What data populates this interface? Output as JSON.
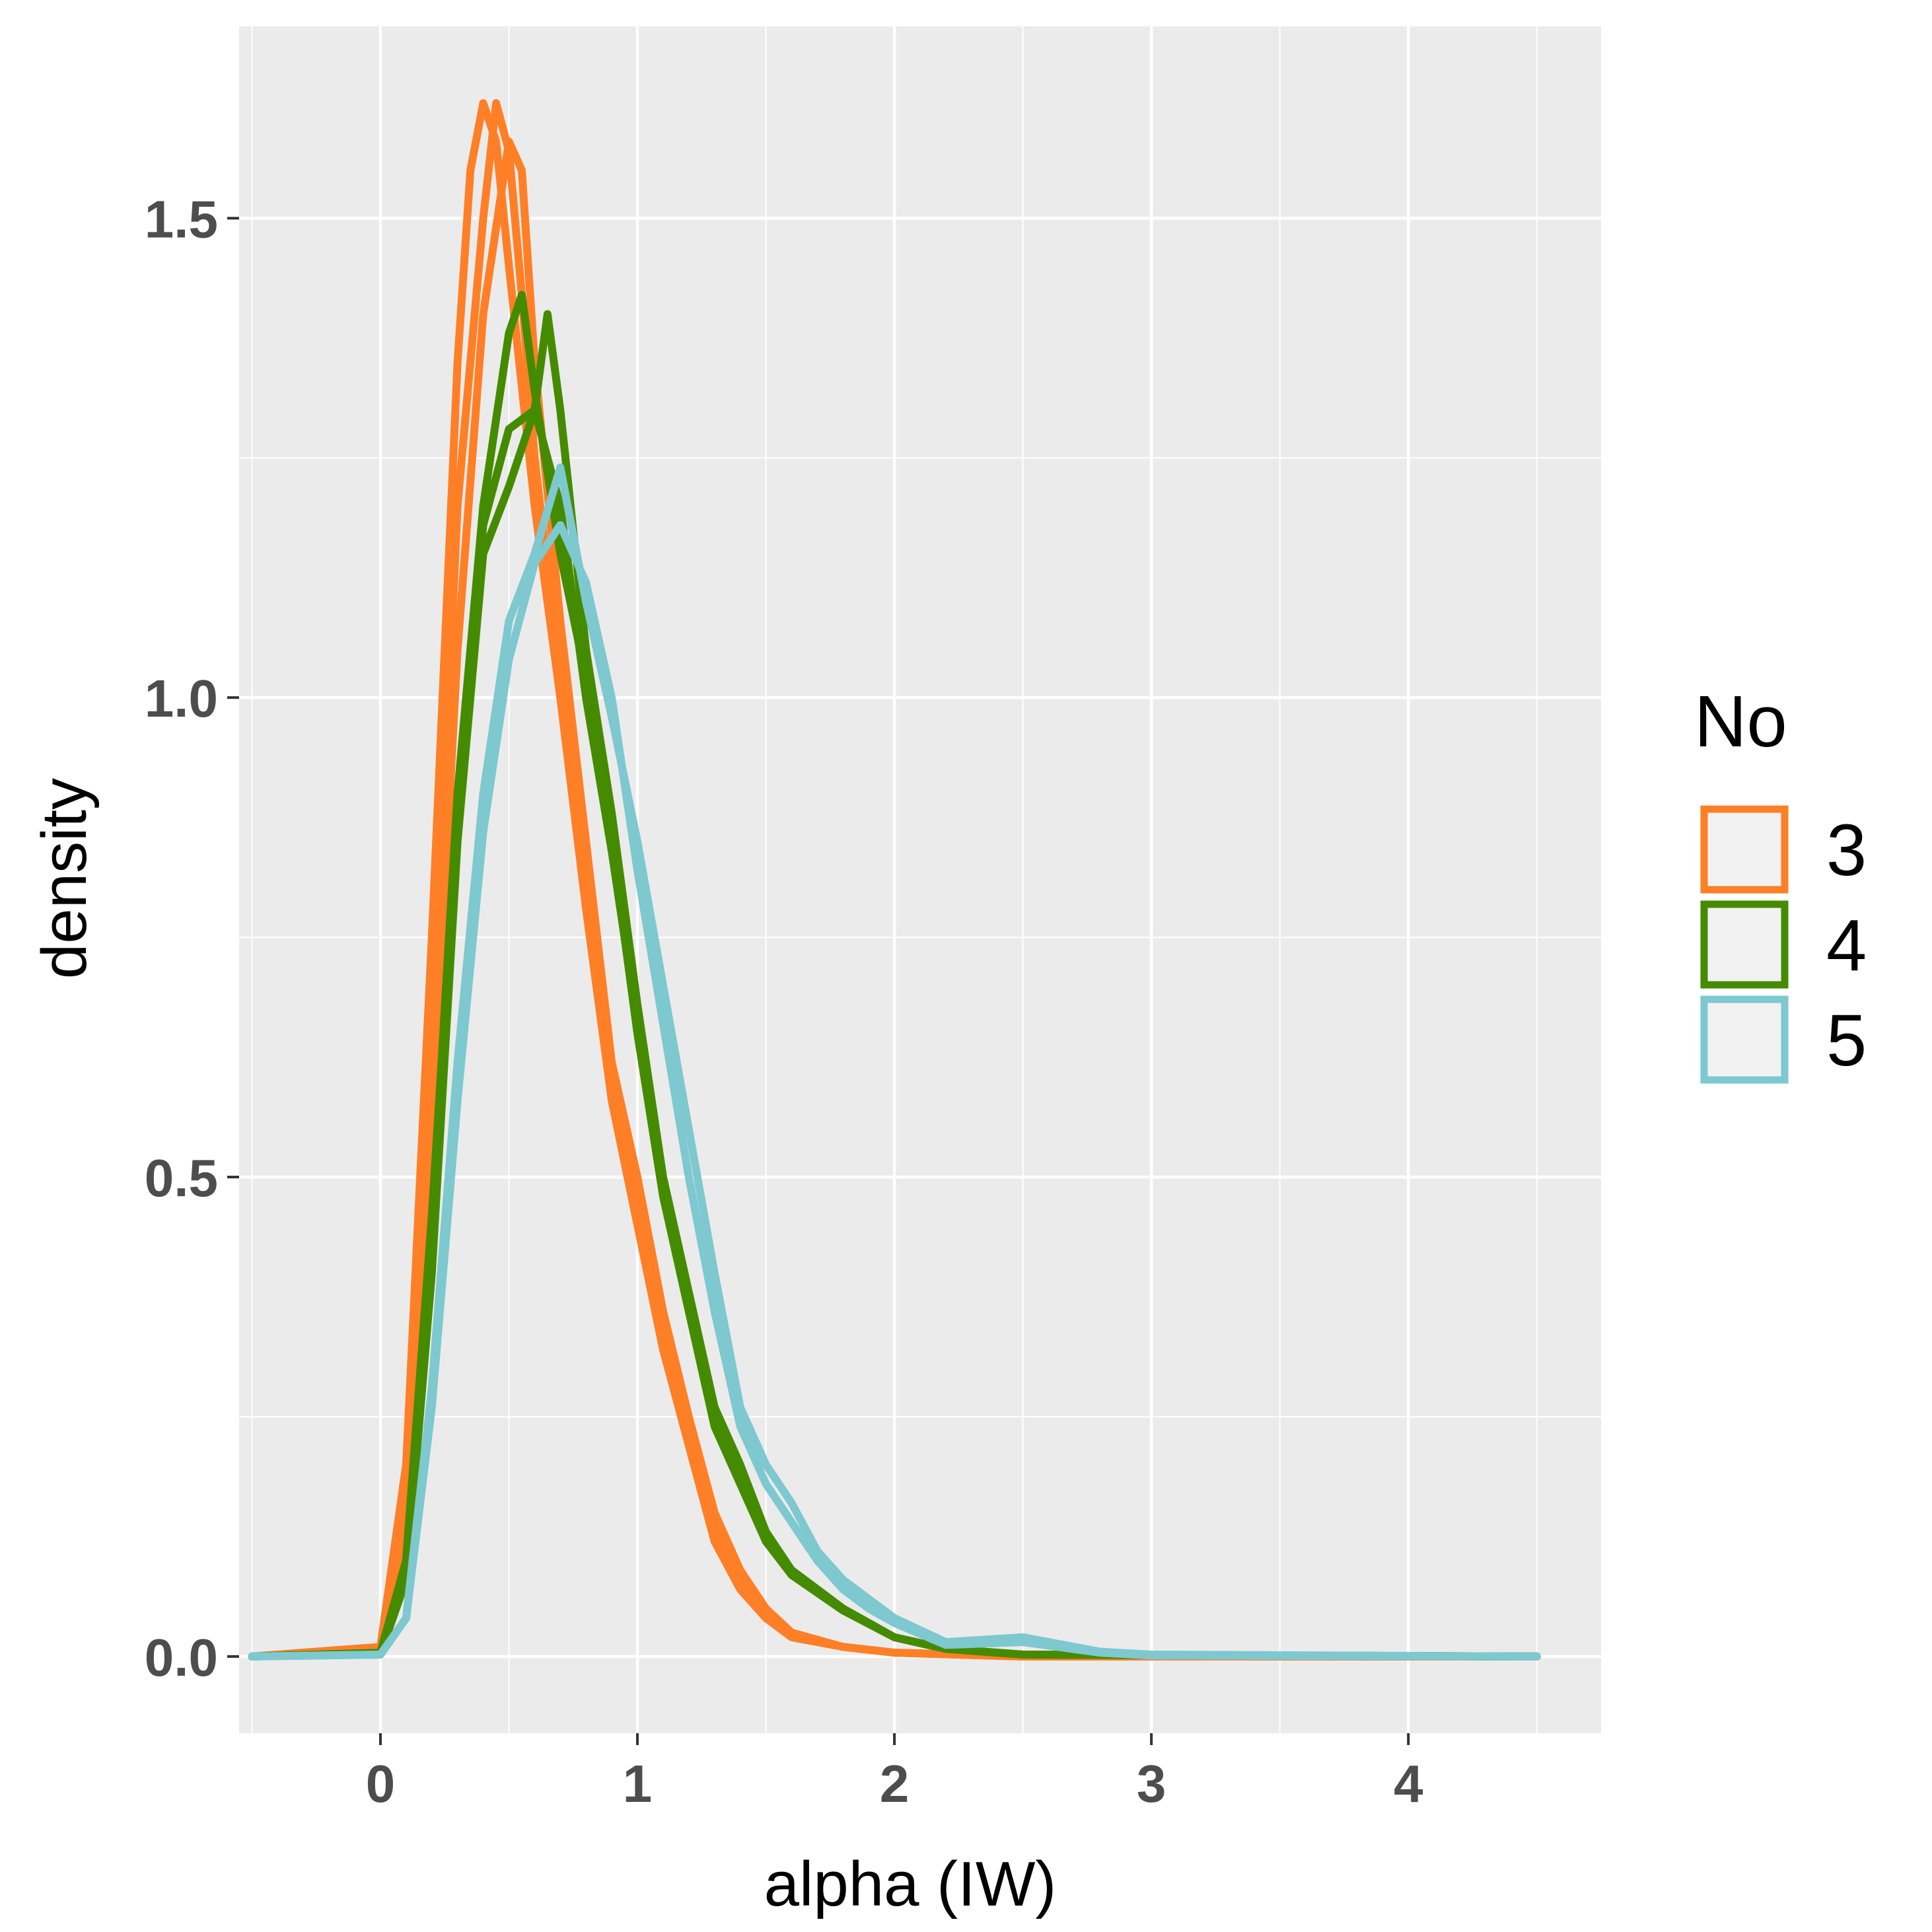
{
  "chart_data": {
    "type": "line",
    "title": "",
    "xlabel": "alpha (IW)",
    "ylabel": "density",
    "xlim": [
      -0.55,
      4.75
    ],
    "ylim": [
      -0.08,
      1.7
    ],
    "x_ticks": [
      0,
      1,
      2,
      3,
      4
    ],
    "x_tick_labels": [
      "0",
      "1",
      "2",
      "3",
      "4"
    ],
    "y_ticks": [
      0.0,
      0.5,
      1.0,
      1.5
    ],
    "y_tick_labels": [
      "0.0",
      "0.5",
      "1.0",
      "1.5"
    ],
    "grid": true,
    "panel_background": "#ebebeb",
    "legend": {
      "title": "No",
      "position": "right",
      "entries": [
        {
          "label": "3",
          "color": "#ff7f27"
        },
        {
          "label": "4",
          "color": "#458b00"
        },
        {
          "label": "5",
          "color": "#7ec8d0"
        }
      ]
    },
    "series": [
      {
        "name": "3",
        "color": "#ff7f27",
        "x": [
          -0.5,
          0.0,
          0.1,
          0.2,
          0.3,
          0.35,
          0.4,
          0.45,
          0.5,
          0.6,
          0.7,
          0.8,
          0.9,
          1.0,
          1.1,
          1.2,
          1.3,
          1.4,
          1.5,
          1.6,
          1.8,
          2.0,
          2.5,
          4.5
        ],
        "y": [
          0,
          0.01,
          0.2,
          0.75,
          1.35,
          1.55,
          1.62,
          1.58,
          1.45,
          1.2,
          1.0,
          0.78,
          0.58,
          0.45,
          0.32,
          0.22,
          0.12,
          0.07,
          0.04,
          0.02,
          0.01,
          0.004,
          0,
          0
        ]
      },
      {
        "name": "3",
        "color": "#ff7f27",
        "x": [
          -0.5,
          0.0,
          0.1,
          0.2,
          0.3,
          0.4,
          0.45,
          0.5,
          0.55,
          0.6,
          0.7,
          0.8,
          0.9,
          1.0,
          1.1,
          1.2,
          1.3,
          1.4,
          1.5,
          1.6,
          1.8,
          2.0,
          2.5,
          4.5
        ],
        "y": [
          0,
          0.005,
          0.15,
          0.62,
          1.2,
          1.5,
          1.62,
          1.57,
          1.42,
          1.25,
          1.02,
          0.82,
          0.6,
          0.48,
          0.34,
          0.24,
          0.14,
          0.08,
          0.045,
          0.022,
          0.01,
          0.004,
          0,
          0
        ]
      },
      {
        "name": "3",
        "color": "#ff7f27",
        "x": [
          -0.5,
          0.0,
          0.1,
          0.2,
          0.3,
          0.4,
          0.5,
          0.55,
          0.6,
          0.7,
          0.8,
          0.9,
          1.0,
          1.1,
          1.2,
          1.3,
          1.4,
          1.5,
          1.6,
          1.8,
          2.0,
          2.5,
          4.5
        ],
        "y": [
          0,
          0.005,
          0.12,
          0.55,
          1.05,
          1.4,
          1.58,
          1.55,
          1.35,
          1.08,
          0.85,
          0.62,
          0.5,
          0.36,
          0.25,
          0.15,
          0.09,
          0.05,
          0.025,
          0.01,
          0.004,
          0,
          0
        ]
      },
      {
        "name": "4",
        "color": "#458b00",
        "x": [
          -0.5,
          0.0,
          0.1,
          0.2,
          0.3,
          0.4,
          0.5,
          0.55,
          0.6,
          0.7,
          0.8,
          0.9,
          1.0,
          1.1,
          1.2,
          1.3,
          1.4,
          1.5,
          1.6,
          1.8,
          2.0,
          2.2,
          2.5,
          4.5
        ],
        "y": [
          0,
          0.004,
          0.1,
          0.45,
          0.9,
          1.2,
          1.38,
          1.42,
          1.32,
          1.15,
          1.02,
          0.85,
          0.65,
          0.48,
          0.36,
          0.24,
          0.18,
          0.12,
          0.09,
          0.05,
          0.02,
          0.008,
          0.002,
          0
        ]
      },
      {
        "name": "4",
        "color": "#458b00",
        "x": [
          -0.5,
          0.0,
          0.1,
          0.2,
          0.3,
          0.4,
          0.5,
          0.6,
          0.65,
          0.7,
          0.8,
          0.9,
          1.0,
          1.1,
          1.2,
          1.3,
          1.4,
          1.5,
          1.6,
          1.8,
          2.0,
          2.2,
          2.5,
          4.5
        ],
        "y": [
          0,
          0.003,
          0.08,
          0.4,
          0.85,
          1.15,
          1.22,
          1.3,
          1.4,
          1.3,
          1.05,
          0.88,
          0.68,
          0.5,
          0.38,
          0.26,
          0.2,
          0.13,
          0.09,
          0.05,
          0.02,
          0.008,
          0.002,
          0
        ]
      },
      {
        "name": "4",
        "color": "#458b00",
        "x": [
          -0.5,
          0.0,
          0.1,
          0.2,
          0.3,
          0.4,
          0.5,
          0.6,
          0.7,
          0.8,
          0.9,
          1.0,
          1.1,
          1.2,
          1.3,
          1.4,
          1.5,
          1.6,
          1.8,
          2.0,
          2.2,
          2.5,
          4.5
        ],
        "y": [
          0,
          0.004,
          0.1,
          0.46,
          0.88,
          1.18,
          1.28,
          1.3,
          1.2,
          1.0,
          0.84,
          0.66,
          0.49,
          0.37,
          0.25,
          0.19,
          0.12,
          0.085,
          0.048,
          0.02,
          0.008,
          0.002,
          0
        ]
      },
      {
        "name": "5",
        "color": "#7ec8d0",
        "x": [
          -0.5,
          0.0,
          0.1,
          0.2,
          0.3,
          0.4,
          0.5,
          0.6,
          0.7,
          0.8,
          0.9,
          1.0,
          1.1,
          1.2,
          1.3,
          1.4,
          1.5,
          1.6,
          1.7,
          1.8,
          1.9,
          2.0,
          2.2,
          2.5,
          2.8,
          3.0,
          4.5
        ],
        "y": [
          0,
          0.002,
          0.04,
          0.28,
          0.62,
          0.9,
          1.08,
          1.15,
          1.24,
          1.1,
          0.98,
          0.85,
          0.7,
          0.55,
          0.4,
          0.26,
          0.2,
          0.16,
          0.11,
          0.08,
          0.06,
          0.04,
          0.015,
          0.02,
          0.005,
          0.002,
          0
        ]
      },
      {
        "name": "5",
        "color": "#7ec8d0",
        "x": [
          -0.5,
          0.0,
          0.1,
          0.2,
          0.3,
          0.4,
          0.5,
          0.6,
          0.7,
          0.8,
          0.9,
          1.0,
          1.1,
          1.2,
          1.3,
          1.4,
          1.5,
          1.6,
          1.7,
          1.8,
          1.9,
          2.0,
          2.2,
          2.5,
          2.8,
          3.0,
          4.5
        ],
        "y": [
          0,
          0.002,
          0.04,
          0.26,
          0.58,
          0.86,
          1.04,
          1.14,
          1.18,
          1.12,
          1.0,
          0.82,
          0.66,
          0.5,
          0.36,
          0.24,
          0.18,
          0.14,
          0.1,
          0.07,
          0.05,
          0.035,
          0.012,
          0.015,
          0.004,
          0.001,
          0
        ]
      }
    ]
  }
}
